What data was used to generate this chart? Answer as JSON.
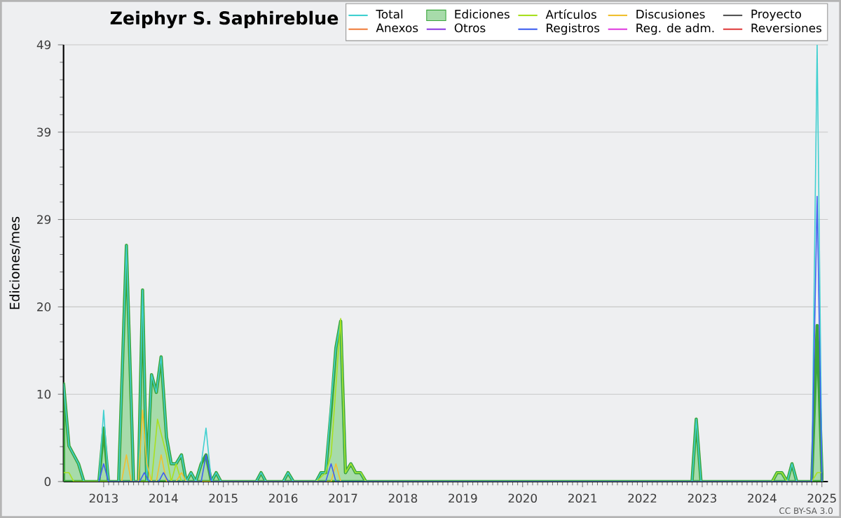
{
  "chart_data": {
    "type": "line",
    "title": "Zeiphyr S. Saphireblue",
    "ylabel": "Ediciones/mes",
    "annotations": [
      "CC BY-SA 3.0"
    ],
    "xlim": [
      2012.33,
      2025.1
    ],
    "xticks": [
      2013,
      2014,
      2015,
      2016,
      2017,
      2018,
      2019,
      2020,
      2021,
      2022,
      2023,
      2024,
      2025
    ],
    "ylim": [
      0,
      49
    ],
    "yticks": [
      0,
      {
        "value": 9.8,
        "label": "10"
      },
      {
        "value": 19.6,
        "label": "20"
      },
      {
        "value": 29.4,
        "label": "29"
      },
      {
        "value": 39.2,
        "label": "39"
      },
      49
    ],
    "grid": "y",
    "legend": "top right",
    "marker": "none",
    "series": [
      {
        "name": "Total",
        "color": "#40d0d0",
        "x": [
          2012.33,
          2012.42,
          2012.5,
          2012.58,
          2012.67,
          2012.92,
          2013.0,
          2013.08,
          2013.25,
          2013.38,
          2013.5,
          2013.58,
          2013.65,
          2013.72,
          2013.8,
          2013.88,
          2013.96,
          2014.05,
          2014.13,
          2014.21,
          2014.3,
          2014.38,
          2014.46,
          2014.54,
          2014.63,
          2014.71,
          2014.8,
          2014.88,
          2014.96,
          2015.55,
          2015.63,
          2015.71,
          2016.0,
          2016.08,
          2016.17,
          2016.55,
          2016.63,
          2016.71,
          2016.8,
          2016.88,
          2016.96,
          2017.04,
          2017.13,
          2017.21,
          2017.29,
          2017.38,
          2022.83,
          2022.9,
          2022.98,
          2024.17,
          2024.25,
          2024.33,
          2024.42,
          2024.5,
          2024.58,
          2024.83,
          2024.92,
          2025.0
        ],
        "values": [
          11,
          4,
          3,
          2,
          0,
          0,
          8,
          0,
          0,
          26.5,
          0,
          0,
          21.5,
          0,
          12,
          10,
          14,
          5,
          2,
          2,
          3,
          0,
          1,
          0,
          2,
          6,
          0,
          1,
          0,
          0,
          1,
          0,
          0,
          1,
          0,
          0,
          1,
          1,
          9,
          15,
          18,
          1,
          2,
          1,
          1,
          0,
          0,
          7,
          0,
          0,
          1,
          1,
          0,
          2,
          0,
          0,
          49,
          1
        ]
      },
      {
        "name": "Ediciones",
        "type": "area",
        "color": "#a7dbaa",
        "x": [
          2012.33,
          2012.42,
          2012.5,
          2012.58,
          2012.67,
          2012.92,
          2013.0,
          2013.08,
          2013.25,
          2013.38,
          2013.5,
          2013.58,
          2013.65,
          2013.72,
          2013.8,
          2013.88,
          2013.96,
          2014.05,
          2014.13,
          2014.21,
          2014.3,
          2014.38,
          2014.46,
          2014.54,
          2014.63,
          2014.71,
          2014.8,
          2014.88,
          2014.96,
          2015.55,
          2015.63,
          2015.71,
          2016.0,
          2016.08,
          2016.17,
          2016.55,
          2016.63,
          2016.71,
          2016.8,
          2016.88,
          2016.96,
          2017.04,
          2017.13,
          2017.21,
          2017.29,
          2017.38,
          2022.83,
          2022.9,
          2022.98,
          2024.17,
          2024.25,
          2024.33,
          2024.42,
          2024.5,
          2024.58,
          2024.83,
          2024.92,
          2025.0
        ],
        "values": [
          11,
          4,
          3,
          2,
          0,
          0,
          6,
          0,
          0,
          26.5,
          0,
          0,
          21.5,
          0,
          12,
          10,
          14,
          5,
          2,
          2,
          3,
          0,
          1,
          0,
          2,
          3,
          0,
          1,
          0,
          0,
          1,
          0,
          0,
          1,
          0,
          0,
          1,
          1,
          8,
          15,
          18,
          1,
          2,
          1,
          1,
          0,
          0,
          7,
          0,
          0,
          1,
          1,
          0,
          2,
          0,
          0,
          17.5,
          1
        ]
      },
      {
        "name": "Artículos",
        "color": "#a8e020",
        "x": [
          2012.33,
          2012.42,
          2012.5,
          2013.8,
          2013.9,
          2014.05,
          2014.13,
          2014.21,
          2014.3,
          2016.55,
          2016.71,
          2016.8,
          2016.96,
          2017.04,
          2017.13,
          2017.21,
          2017.3,
          2017.38,
          2024.17,
          2024.25,
          2024.33,
          2024.42,
          2024.83,
          2024.92,
          2025.0
        ],
        "values": [
          1,
          1,
          0,
          0,
          7,
          3,
          0,
          2,
          0,
          0,
          1,
          3,
          18.3,
          1,
          2,
          1,
          1,
          0,
          0,
          1,
          1,
          0,
          0,
          1,
          1
        ]
      },
      {
        "name": "Discusiones",
        "color": "#f0c030",
        "x": [
          2013.3,
          2013.38,
          2013.46,
          2013.58,
          2013.65,
          2013.72,
          2013.8,
          2013.88,
          2013.96,
          2014.05,
          2014.21,
          2014.3,
          2014.38,
          2016.8,
          2016.88,
          2016.96
        ],
        "values": [
          0,
          3,
          0,
          0,
          8,
          2,
          0,
          0,
          3,
          0,
          0,
          1,
          0,
          0,
          2,
          0
        ]
      },
      {
        "name": "Proyecto",
        "color": "#555555"
      },
      {
        "name": "Anexos",
        "color": "#f08040"
      },
      {
        "name": "Otros",
        "color": "#9040e0"
      },
      {
        "name": "Registros",
        "color": "#4060f0",
        "x": [
          2012.92,
          2013.0,
          2013.08,
          2013.6,
          2013.68,
          2013.76,
          2013.92,
          2014.0,
          2014.08,
          2014.63,
          2014.71,
          2014.8,
          2016.71,
          2016.8,
          2016.88,
          2024.83,
          2024.92,
          2025.0
        ],
        "values": [
          0,
          2,
          0,
          0,
          1,
          0,
          0,
          1,
          0,
          0,
          3,
          0,
          0,
          2,
          0,
          0,
          32,
          0
        ]
      },
      {
        "name": "Reg. de adm.",
        "color": "#e040e0"
      },
      {
        "name": "Reversiones",
        "color": "#e04040"
      }
    ]
  }
}
